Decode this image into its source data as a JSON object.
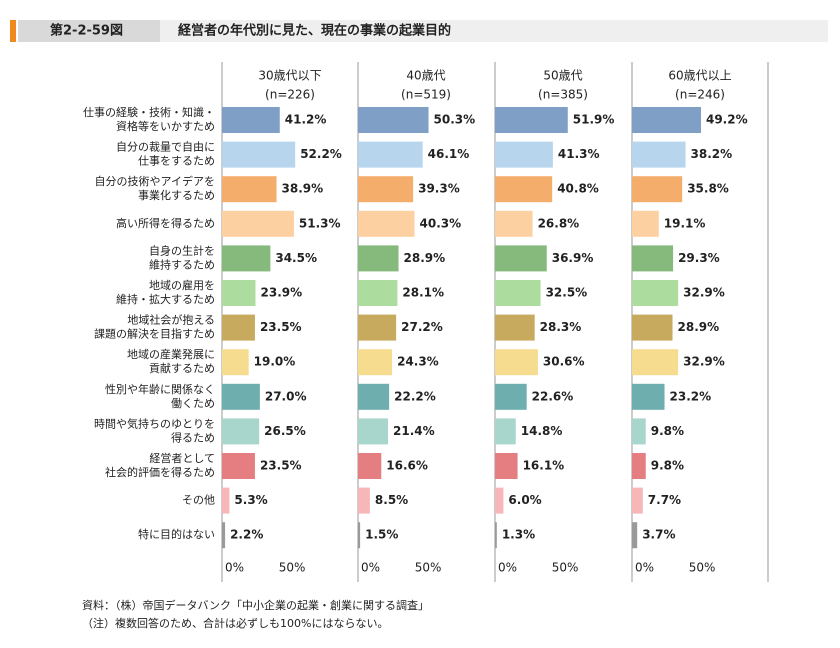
{
  "chart_data": {
    "type": "bar",
    "orientation": "horizontal",
    "figure_label": "第2-2-59図",
    "title": "経営者の年代別に見た、現在の事業の起業目的",
    "categories": [
      [
        "仕事の経験・技術・知識・",
        "資格等をいかすため"
      ],
      [
        "自分の裁量で自由に",
        "仕事をするため"
      ],
      [
        "自分の技術やアイデアを",
        "事業化するため"
      ],
      [
        "高い所得を得るため"
      ],
      [
        "自身の生計を",
        "維持するため"
      ],
      [
        "地域の雇用を",
        "維持・拡大するため"
      ],
      [
        "地域社会が抱える",
        "課題の解決を目指すため"
      ],
      [
        "地域の産業発展に",
        "貢献するため"
      ],
      [
        "性別や年齢に関係なく",
        "働くため"
      ],
      [
        "時間や気持ちのゆとりを",
        "得るため"
      ],
      [
        "経営者として",
        "社会的評価を得るため"
      ],
      [
        "その他"
      ],
      [
        "特に目的はない"
      ]
    ],
    "colors": [
      "#7f9fc7",
      "#b8d5ee",
      "#f5ad6c",
      "#fdd0a2",
      "#86b97c",
      "#acdc9e",
      "#c8aa5e",
      "#f5dc8e",
      "#6eaeae",
      "#a9d6cc",
      "#e57e80",
      "#f7b7b8",
      "#9a9a9a"
    ],
    "series": [
      {
        "name": "30歳代以下",
        "n_label": "(n=226)",
        "values": [
          41.2,
          52.2,
          38.9,
          51.3,
          34.5,
          23.9,
          23.5,
          19.0,
          27.0,
          26.5,
          23.5,
          5.3,
          2.2
        ],
        "value_labels": [
          "41.2%",
          "52.2%",
          "38.9%",
          "51.3%",
          "34.5%",
          "23.9%",
          "23.5%",
          "19.0%",
          "27.0%",
          "26.5%",
          "23.5%",
          "5.3%",
          "2.2%"
        ]
      },
      {
        "name": "40歳代",
        "n_label": "(n=519)",
        "values": [
          50.3,
          46.1,
          39.3,
          40.3,
          28.9,
          28.1,
          27.2,
          24.3,
          22.2,
          21.4,
          16.6,
          8.5,
          1.5
        ],
        "value_labels": [
          "50.3%",
          "46.1%",
          "39.3%",
          "40.3%",
          "28.9%",
          "28.1%",
          "27.2%",
          "24.3%",
          "22.2%",
          "21.4%",
          "16.6%",
          "8.5%",
          "1.5%"
        ]
      },
      {
        "name": "50歳代",
        "n_label": "(n=385)",
        "values": [
          51.9,
          41.3,
          40.8,
          26.8,
          36.9,
          32.5,
          28.3,
          30.6,
          22.6,
          14.8,
          16.1,
          6.0,
          1.3
        ],
        "value_labels": [
          "51.9%",
          "41.3%",
          "40.8%",
          "26.8%",
          "36.9%",
          "32.5%",
          "28.3%",
          "30.6%",
          "22.6%",
          "14.8%",
          "16.1%",
          "6.0%",
          "1.3%"
        ]
      },
      {
        "name": "60歳代以上",
        "n_label": "(n=246)",
        "values": [
          49.2,
          38.2,
          35.8,
          19.1,
          29.3,
          32.9,
          28.9,
          32.9,
          23.2,
          9.8,
          9.8,
          7.7,
          3.7
        ],
        "value_labels": [
          "49.2%",
          "38.2%",
          "35.8%",
          "19.1%",
          "29.3%",
          "32.9%",
          "28.9%",
          "32.9%",
          "23.2%",
          "9.8%",
          "9.8%",
          "7.7%",
          "3.7%"
        ]
      }
    ],
    "xlim": [
      0,
      97
    ],
    "xticks": [
      {
        "value": 0,
        "label": "0%"
      },
      {
        "value": 50,
        "label": "50%"
      }
    ],
    "notes": [
      "資料：（株）帝国データバンク「中小企業の起業・創業に関する調査」",
      "（注）複数回答のため、合計は必ずしも100%にはならない。"
    ]
  }
}
